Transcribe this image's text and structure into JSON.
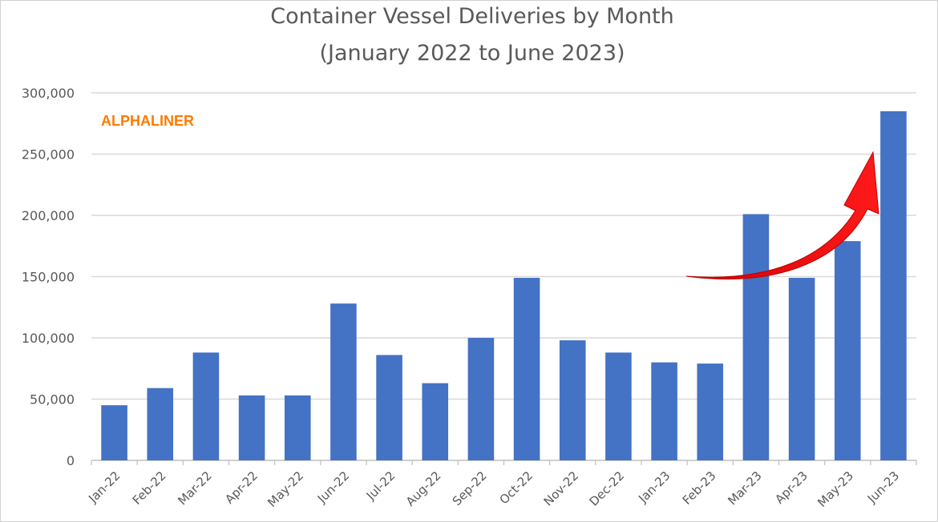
{
  "chart_data": {
    "type": "bar",
    "title": "Container Vessel Deliveries by Month",
    "subtitle": "(January 2022 to June 2023)",
    "watermark": "ALPHALINER",
    "categories": [
      "Jan-22",
      "Feb-22",
      "Mar-22",
      "Apr-22",
      "May-22",
      "Jun-22",
      "Jul-22",
      "Aug-22",
      "Sep-22",
      "Oct-22",
      "Nov-22",
      "Dec-22",
      "Jan-23",
      "Feb-23",
      "Mar-23",
      "Apr-23",
      "May-23",
      "Jun-23"
    ],
    "values": [
      45000,
      59000,
      88000,
      53000,
      53000,
      128000,
      86000,
      63000,
      100000,
      149000,
      98000,
      88000,
      80000,
      79000,
      201000,
      149000,
      179000,
      285000
    ],
    "yticks": [
      "0",
      "50,000",
      "100,000",
      "150,000",
      "200,000",
      "250,000",
      "300,000"
    ],
    "ylim": [
      0,
      300000
    ],
    "grid": true,
    "legend": "none",
    "colors": {
      "bar": "#4472C4",
      "grid": "#d9d9d9",
      "arrow": "#ff0000",
      "watermark": "#ff7a00",
      "text": "#595959"
    },
    "annotation": "red-upward-trend-arrow"
  }
}
